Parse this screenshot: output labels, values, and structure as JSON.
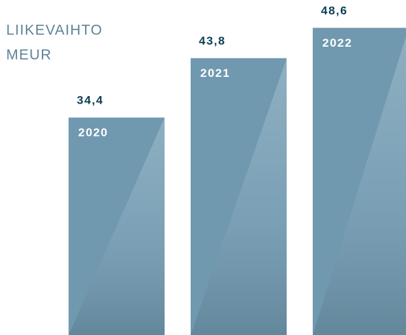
{
  "chart_data": {
    "type": "bar",
    "title": "LIIKEVAIHTO",
    "subtitle": "MEUR",
    "categories": [
      "2020",
      "2021",
      "2022"
    ],
    "values": [
      34.4,
      43.8,
      48.6
    ],
    "value_labels": [
      "34,4",
      "43,8",
      "48,6"
    ],
    "color": "#7099b0",
    "ylim": [
      0,
      53
    ]
  }
}
